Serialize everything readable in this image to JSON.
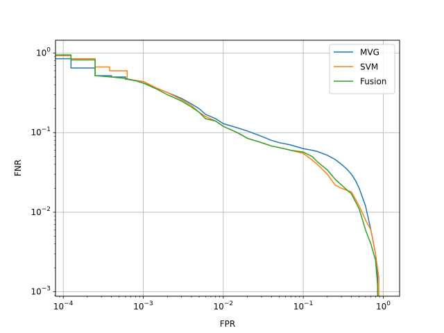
{
  "chart_data": {
    "type": "line",
    "title": "",
    "xlabel": "FPR",
    "ylabel": "FNR",
    "xscale": "log",
    "yscale": "log",
    "xlim": [
      8e-05,
      1.6
    ],
    "ylim": [
      0.00088,
      1.45
    ],
    "grid": true,
    "legend_position": "top-right",
    "x_ticks": [
      {
        "value": 0.0001,
        "base": "10",
        "exp": "−4"
      },
      {
        "value": 0.001,
        "base": "10",
        "exp": "−3"
      },
      {
        "value": 0.01,
        "base": "10",
        "exp": "−2"
      },
      {
        "value": 0.1,
        "base": "10",
        "exp": "−1"
      },
      {
        "value": 1,
        "base": "10",
        "exp": "0"
      }
    ],
    "y_ticks": [
      {
        "value": 0.001,
        "base": "10",
        "exp": "−3"
      },
      {
        "value": 0.01,
        "base": "10",
        "exp": "−2"
      },
      {
        "value": 0.1,
        "base": "10",
        "exp": "−1"
      },
      {
        "value": 1,
        "base": "10",
        "exp": "0"
      }
    ],
    "series": [
      {
        "name": "MVG",
        "color": "#1f77b4",
        "x": [
          8e-05,
          0.000125,
          0.000125,
          0.00025,
          0.00025,
          0.0004,
          0.0004,
          0.0006,
          0.0006,
          0.0008,
          0.001,
          0.0015,
          0.002,
          0.003,
          0.004,
          0.005,
          0.006,
          0.008,
          0.01,
          0.015,
          0.02,
          0.03,
          0.04,
          0.05,
          0.07,
          0.1,
          0.13,
          0.15,
          0.2,
          0.25,
          0.3,
          0.35,
          0.4,
          0.45,
          0.5,
          0.6,
          0.7,
          0.8,
          0.85,
          0.85
        ],
        "y": [
          0.85,
          0.85,
          0.65,
          0.65,
          0.52,
          0.52,
          0.5,
          0.5,
          0.47,
          0.45,
          0.42,
          0.36,
          0.32,
          0.27,
          0.23,
          0.2,
          0.17,
          0.15,
          0.13,
          0.115,
          0.105,
          0.09,
          0.08,
          0.075,
          0.07,
          0.063,
          0.06,
          0.058,
          0.052,
          0.046,
          0.04,
          0.035,
          0.03,
          0.025,
          0.02,
          0.012,
          0.006,
          0.003,
          0.0015,
          0.00088
        ]
      },
      {
        "name": "SVM",
        "color": "#ff7f0e",
        "x": [
          8e-05,
          0.000125,
          0.000125,
          0.00025,
          0.00025,
          0.00038,
          0.00038,
          0.00063,
          0.00063,
          0.001,
          0.0015,
          0.002,
          0.003,
          0.004,
          0.005,
          0.006,
          0.008,
          0.01,
          0.015,
          0.02,
          0.03,
          0.04,
          0.05,
          0.07,
          0.1,
          0.13,
          0.15,
          0.2,
          0.25,
          0.3,
          0.4,
          0.5,
          0.6,
          0.7,
          0.8,
          0.88,
          0.88
        ],
        "y": [
          0.93,
          0.93,
          0.85,
          0.85,
          0.67,
          0.67,
          0.6,
          0.6,
          0.47,
          0.44,
          0.36,
          0.32,
          0.26,
          0.22,
          0.18,
          0.16,
          0.14,
          0.12,
          0.1,
          0.085,
          0.075,
          0.068,
          0.065,
          0.06,
          0.055,
          0.045,
          0.04,
          0.03,
          0.022,
          0.02,
          0.018,
          0.012,
          0.008,
          0.006,
          0.003,
          0.0015,
          0.00088
        ]
      },
      {
        "name": "Fusion",
        "color": "#2ca02c",
        "x": [
          8e-05,
          0.000125,
          0.000125,
          0.00025,
          0.00025,
          0.0004,
          0.0006,
          0.0008,
          0.001,
          0.0015,
          0.002,
          0.003,
          0.004,
          0.005,
          0.006,
          0.008,
          0.01,
          0.015,
          0.02,
          0.03,
          0.04,
          0.05,
          0.07,
          0.1,
          0.13,
          0.15,
          0.2,
          0.25,
          0.3,
          0.4,
          0.5,
          0.6,
          0.7,
          0.8,
          0.85,
          0.85
        ],
        "y": [
          0.95,
          0.95,
          0.82,
          0.82,
          0.52,
          0.5,
          0.48,
          0.45,
          0.42,
          0.35,
          0.3,
          0.25,
          0.21,
          0.18,
          0.15,
          0.14,
          0.12,
          0.1,
          0.085,
          0.075,
          0.068,
          0.065,
          0.06,
          0.057,
          0.05,
          0.043,
          0.034,
          0.026,
          0.022,
          0.017,
          0.011,
          0.006,
          0.004,
          0.0025,
          0.0012,
          0.00088
        ]
      }
    ]
  }
}
